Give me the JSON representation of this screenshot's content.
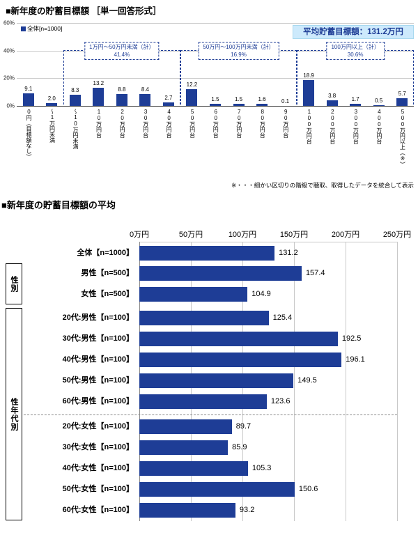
{
  "colors": {
    "bar": "#1e3d96",
    "navy_text": "#1e3d96",
    "average_box_bg": "#cdeafc",
    "grid": "#cccccc"
  },
  "top": {
    "title": "■新年度の貯蓄目標額 ［単一回答形式］",
    "legend": "全体[n=1000]",
    "average_note": "平均貯蓄目標額：131.2万円",
    "footnote": "※・・・細かい区切りの階級で聴取、取得したデータを統合して表示"
  },
  "bottom": {
    "title": "■新年度の貯蓄目標額の平均"
  },
  "chart_data": [
    {
      "type": "bar",
      "title": "新年度の貯蓄目標額［単一回答形式］",
      "legend": [
        "全体[n=1000]"
      ],
      "categories": [
        "0円（目標額なし）",
        "～1万円未満",
        "～10万円未満",
        "10万円台",
        "20万円台",
        "30万円台",
        "40万円台",
        "50万円台",
        "60万円台",
        "70万円台",
        "80万円台",
        "90万円台",
        "100万円台",
        "200万円台",
        "300万円台",
        "400万円台",
        "500万円以上（※）"
      ],
      "values": [
        9.1,
        2.0,
        8.3,
        13.2,
        8.8,
        8.4,
        2.7,
        12.2,
        1.5,
        1.5,
        1.6,
        0.1,
        18.9,
        3.8,
        1.7,
        0.5,
        5.7
      ],
      "ylabel": "%",
      "ylim": [
        0,
        60
      ],
      "yticks": [
        0,
        20,
        40,
        60
      ],
      "group_annotations": [
        {
          "label": "1万円～50万円未満（計）",
          "value": "41.4%",
          "from_index": 2,
          "to_index": 6
        },
        {
          "label": "50万円～100万円未満（計）",
          "value": "16.9%",
          "from_index": 7,
          "to_index": 11
        },
        {
          "label": "100万円以上（計）",
          "value": "30.6%",
          "from_index": 12,
          "to_index": 16
        }
      ],
      "average_note": "平均貯蓄目標額：131.2万円",
      "legend_position": "top-left",
      "grid": true
    },
    {
      "type": "bar-horizontal",
      "title": "新年度の貯蓄目標額の平均",
      "unit": "万円",
      "categories": [
        "全体【n=1000】",
        "男性【n=500】",
        "女性【n=500】",
        "20代:男性【n=100】",
        "30代:男性【n=100】",
        "40代:男性【n=100】",
        "50代:男性【n=100】",
        "60代:男性【n=100】",
        "20代:女性【n=100】",
        "30代:女性【n=100】",
        "40代:女性【n=100】",
        "50代:女性【n=100】",
        "60代:女性【n=100】"
      ],
      "values": [
        131.2,
        157.4,
        104.9,
        125.4,
        192.5,
        196.1,
        149.5,
        123.6,
        89.7,
        85.9,
        105.3,
        150.6,
        93.2
      ],
      "xlim": [
        0,
        250
      ],
      "xticks": [
        "0万円",
        "50万円",
        "100万円",
        "150万円",
        "200万円",
        "250万円"
      ],
      "row_groups": [
        {
          "label": "性別",
          "from_index": 1,
          "to_index": 2
        },
        {
          "label": "性年代別",
          "from_index": 3,
          "to_index": 12
        }
      ],
      "dashed_divider_after_index": 7,
      "grid": true
    }
  ]
}
